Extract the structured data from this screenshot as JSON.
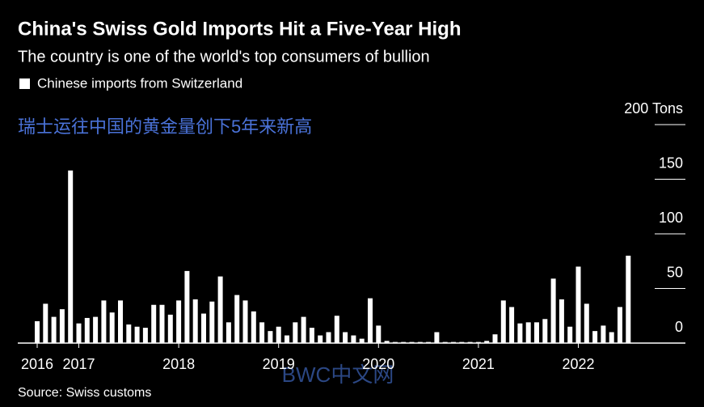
{
  "chart_data": {
    "type": "bar",
    "title": "China's Swiss Gold Imports Hit a Five-Year High",
    "subtitle": "The country is one of the world's top consumers of bullion",
    "annotation": "瑞士运往中国的黄金量创下5年来新高",
    "watermark": "BWC中文网",
    "source": "Source: Swiss customs",
    "series": [
      {
        "name": "Chinese imports from Switzerland",
        "color": "#ffffff",
        "values": [
          20,
          36,
          24,
          31,
          158,
          18,
          23,
          24,
          39,
          28,
          39,
          17,
          15,
          14,
          35,
          35,
          26,
          39,
          66,
          40,
          27,
          38,
          61,
          19,
          44,
          39,
          29,
          19,
          11,
          15,
          7,
          19,
          24,
          14,
          7,
          10,
          25,
          10,
          7,
          4,
          41,
          16,
          2,
          1,
          1,
          1,
          1,
          1,
          10,
          1,
          1,
          1,
          1,
          1,
          2,
          8,
          39,
          33,
          18,
          19,
          19,
          22,
          59,
          40,
          15,
          70,
          36,
          11,
          16,
          10,
          33,
          80
        ]
      }
    ],
    "categories": [
      "2016",
      null,
      null,
      null,
      null,
      "2017",
      null,
      null,
      null,
      null,
      null,
      null,
      null,
      null,
      null,
      null,
      null,
      "2018",
      null,
      null,
      null,
      null,
      null,
      null,
      null,
      null,
      null,
      null,
      null,
      "2019",
      null,
      null,
      null,
      null,
      null,
      null,
      null,
      null,
      null,
      null,
      null,
      "2020",
      null,
      null,
      null,
      null,
      null,
      null,
      null,
      null,
      null,
      null,
      null,
      "2021",
      null,
      null,
      null,
      null,
      null,
      null,
      null,
      null,
      null,
      null,
      null,
      "2022",
      null,
      null,
      null,
      null,
      null,
      null
    ],
    "ylim": [
      0,
      200
    ],
    "yticks": [
      0,
      50,
      100,
      150,
      {
        "value": 200,
        "label": "200 Tons"
      }
    ],
    "grid": true
  }
}
